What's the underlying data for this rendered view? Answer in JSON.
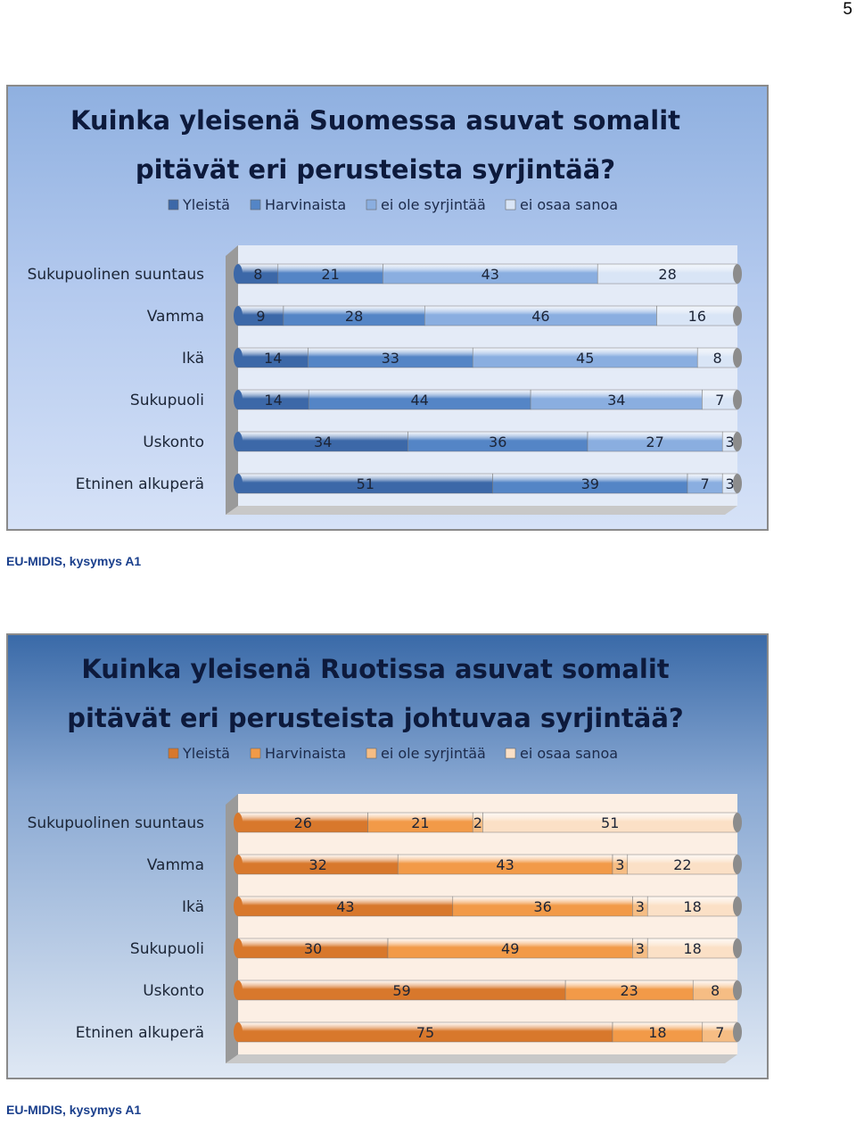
{
  "page_number": "5",
  "chart_data": [
    {
      "type": "bar",
      "stacked": true,
      "orientation": "horizontal",
      "title_lines": [
        "Kuinka yleisenä Suomessa asuvat somalit",
        "pitävät eri perusteista syrjintää?"
      ],
      "categories": [
        "Sukupuolinen suuntaus",
        "Vamma",
        "Ikä",
        "Sukupuoli",
        "Uskonto",
        "Etninen alkuperä"
      ],
      "series": [
        {
          "name": "Yleistä",
          "values": [
            8,
            9,
            14,
            14,
            34,
            51
          ],
          "color": "#3c68a8"
        },
        {
          "name": "Harvinaista",
          "values": [
            21,
            28,
            33,
            44,
            36,
            39
          ],
          "color": "#5485c6"
        },
        {
          "name": "ei ole syrjintää",
          "values": [
            43,
            46,
            45,
            34,
            27,
            7
          ],
          "color": "#8aaee0"
        },
        {
          "name": "ei osaa sanoa",
          "values": [
            28,
            16,
            8,
            7,
            3,
            3
          ],
          "color": "#d9e5f6"
        }
      ],
      "legend_position": "top",
      "grid": false,
      "theme": "blue"
    },
    {
      "type": "bar",
      "stacked": true,
      "orientation": "horizontal",
      "title_lines": [
        "Kuinka yleisenä Ruotissa asuvat somalit",
        "pitävät eri perusteista johtuvaa syrjintää?"
      ],
      "categories": [
        "Sukupuolinen suuntaus",
        "Vamma",
        "Ikä",
        "Sukupuoli",
        "Uskonto",
        "Etninen alkuperä"
      ],
      "series": [
        {
          "name": "Yleistä",
          "values": [
            26,
            32,
            43,
            30,
            59,
            75
          ],
          "color": "#d8782c"
        },
        {
          "name": "Harvinaista",
          "values": [
            21,
            43,
            36,
            49,
            23,
            18
          ],
          "color": "#f29a48"
        },
        {
          "name": "ei ole syrjintää",
          "values": [
            2,
            3,
            3,
            3,
            8,
            7
          ],
          "color": "#f6bd84"
        },
        {
          "name": "ei osaa sanoa",
          "values": [
            51,
            22,
            18,
            18,
            null,
            null
          ],
          "color": "#fbe0c6"
        }
      ],
      "legend_position": "top",
      "grid": false,
      "theme": "orange"
    }
  ],
  "sources": [
    "EU-MIDIS, kysymys A1",
    "EU-MIDIS, kysymys A1"
  ]
}
